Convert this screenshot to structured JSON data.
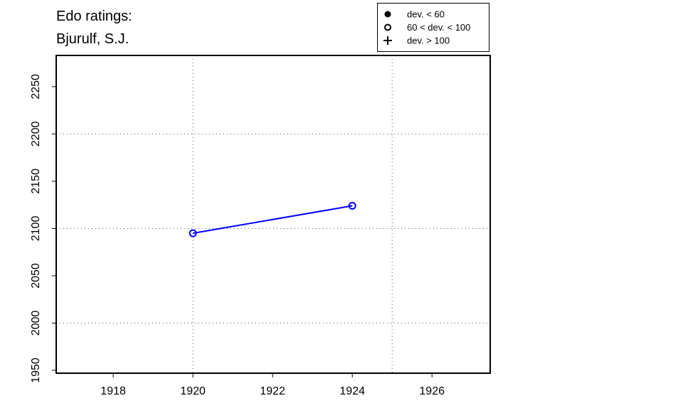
{
  "chart_data": {
    "type": "line",
    "title": [
      "Edo ratings:",
      "Bjurulf, S.J."
    ],
    "xlabel": "",
    "ylabel": "",
    "xlim": [
      1916.57,
      1927.46
    ],
    "ylim": [
      1947,
      2283
    ],
    "x_ticks": [
      1918,
      1920,
      1922,
      1924,
      1926
    ],
    "y_ticks": [
      1950,
      2000,
      2050,
      2100,
      2150,
      2200,
      2250
    ],
    "x_grid": [
      1920,
      1925
    ],
    "y_grid": [
      2000,
      2100,
      2200
    ],
    "grid": true,
    "series": [
      {
        "color": "#0000ff",
        "marker": "open-circle",
        "x": [
          1920,
          1924
        ],
        "y": [
          2095,
          2124
        ]
      }
    ],
    "legend": {
      "placement": "top-right",
      "entries": [
        {
          "symbol": "filled-circle",
          "label": "dev. < 60"
        },
        {
          "symbol": "open-circle",
          "label": "60 < dev. < 100"
        },
        {
          "symbol": "plus",
          "label": "dev. > 100"
        }
      ]
    }
  }
}
